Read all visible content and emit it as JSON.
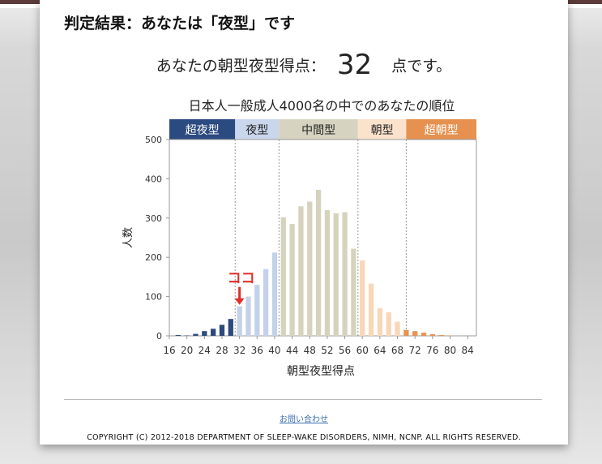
{
  "header": {
    "title": "判定結果：あなたは「夜型」です"
  },
  "score": {
    "label": "あなたの朝型夜型得点：",
    "value": "32",
    "unit": "点です。"
  },
  "footer": {
    "contact_link": "お問い合わせ",
    "copyright": "COPYRIGHT (C) 2012-2018 DEPARTMENT OF SLEEP-WAKE DISORDERS, NIMH, NCNP. ALL RIGHTS RESERVED."
  },
  "chart_data": {
    "type": "bar",
    "title": "日本人一般成人4000名の中でのあなたの順位",
    "xlabel": "朝型夜型得点",
    "ylabel": "人数",
    "ylim": [
      0,
      500
    ],
    "yticks": [
      0,
      100,
      200,
      300,
      400,
      500
    ],
    "xlim": [
      16,
      86
    ],
    "xticks": [
      16,
      20,
      24,
      28,
      32,
      36,
      40,
      44,
      48,
      52,
      56,
      60,
      64,
      68,
      72,
      76,
      80,
      84
    ],
    "bar_start": 16,
    "bar_step": 2,
    "values": [
      0,
      2,
      1,
      5,
      12,
      18,
      28,
      43,
      75,
      100,
      130,
      170,
      212,
      302,
      285,
      330,
      342,
      372,
      320,
      312,
      315,
      222,
      192,
      133,
      70,
      60,
      36,
      15,
      12,
      8,
      4,
      2,
      1,
      0
    ],
    "types": [
      {
        "name": "超夜型",
        "from": 16,
        "to": 31,
        "header_color": "#2b4a7f",
        "bar_color": "#2d4a7c"
      },
      {
        "name": "夜型",
        "from": 31,
        "to": 41,
        "header_color": "#c9d6ec",
        "bar_color": "#c3d1ea"
      },
      {
        "name": "中間型",
        "from": 41,
        "to": 59,
        "header_color": "#d6d4c1",
        "bar_color": "#d6d3bd"
      },
      {
        "name": "朝型",
        "from": 59,
        "to": 70,
        "header_color": "#fae2cc",
        "bar_color": "#f8d7b8"
      },
      {
        "name": "超朝型",
        "from": 70,
        "to": 86,
        "header_color": "#e6914f",
        "bar_color": "#e69250"
      }
    ],
    "annotation": {
      "text": "ココ",
      "at": 32,
      "color": "#e0302a"
    }
  }
}
